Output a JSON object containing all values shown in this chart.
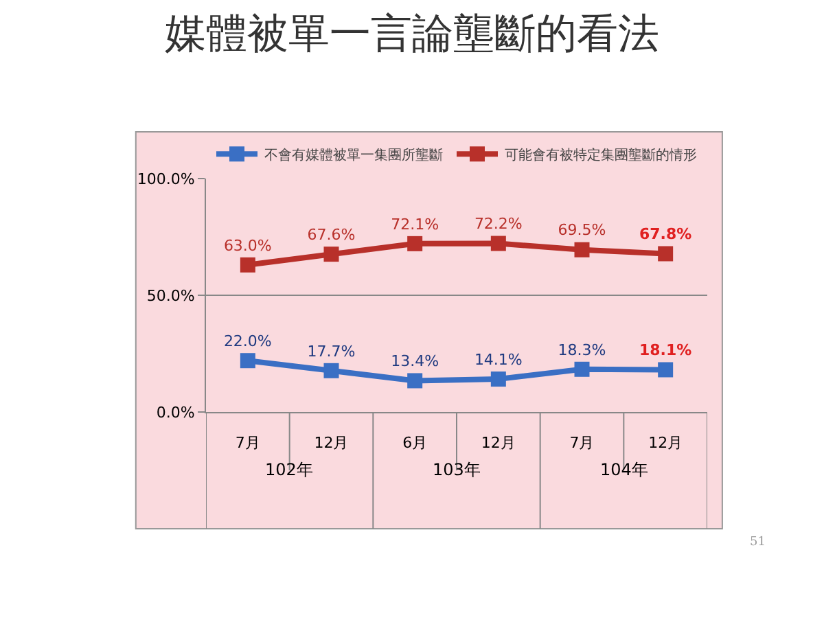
{
  "chart_data": {
    "type": "line",
    "title": "媒體被單一言論壟斷的看法",
    "categories": [
      "7月",
      "12月",
      "6月",
      "12月",
      "7月",
      "12月"
    ],
    "series": [
      {
        "name": "不會有媒體被單一集團所壟斷",
        "color": "#3a6fc4",
        "values": [
          22.0,
          17.7,
          13.4,
          14.1,
          18.3,
          18.1
        ],
        "value_labels": [
          "22.0%",
          "17.7%",
          "13.4%",
          "14.1%",
          "18.3%",
          "18.1%"
        ]
      },
      {
        "name": "可能會有被特定集團壟斷的情形",
        "color": "#b8302a",
        "values": [
          63.0,
          67.6,
          72.1,
          72.2,
          69.5,
          67.8
        ],
        "value_labels": [
          "63.0%",
          "67.6%",
          "72.1%",
          "72.2%",
          "69.5%",
          "67.8%"
        ]
      }
    ],
    "ylim": [
      0,
      100
    ],
    "yticks": [
      {
        "value": 0,
        "label": "0.0%"
      },
      {
        "value": 50,
        "label": "50.0%"
      },
      {
        "value": 100,
        "label": "100.0%"
      }
    ],
    "grid": "y",
    "legend": "top",
    "marker": "square",
    "line_style": "solid",
    "annotations": [
      "102年",
      "103年",
      "104年",
      "51"
    ]
  }
}
